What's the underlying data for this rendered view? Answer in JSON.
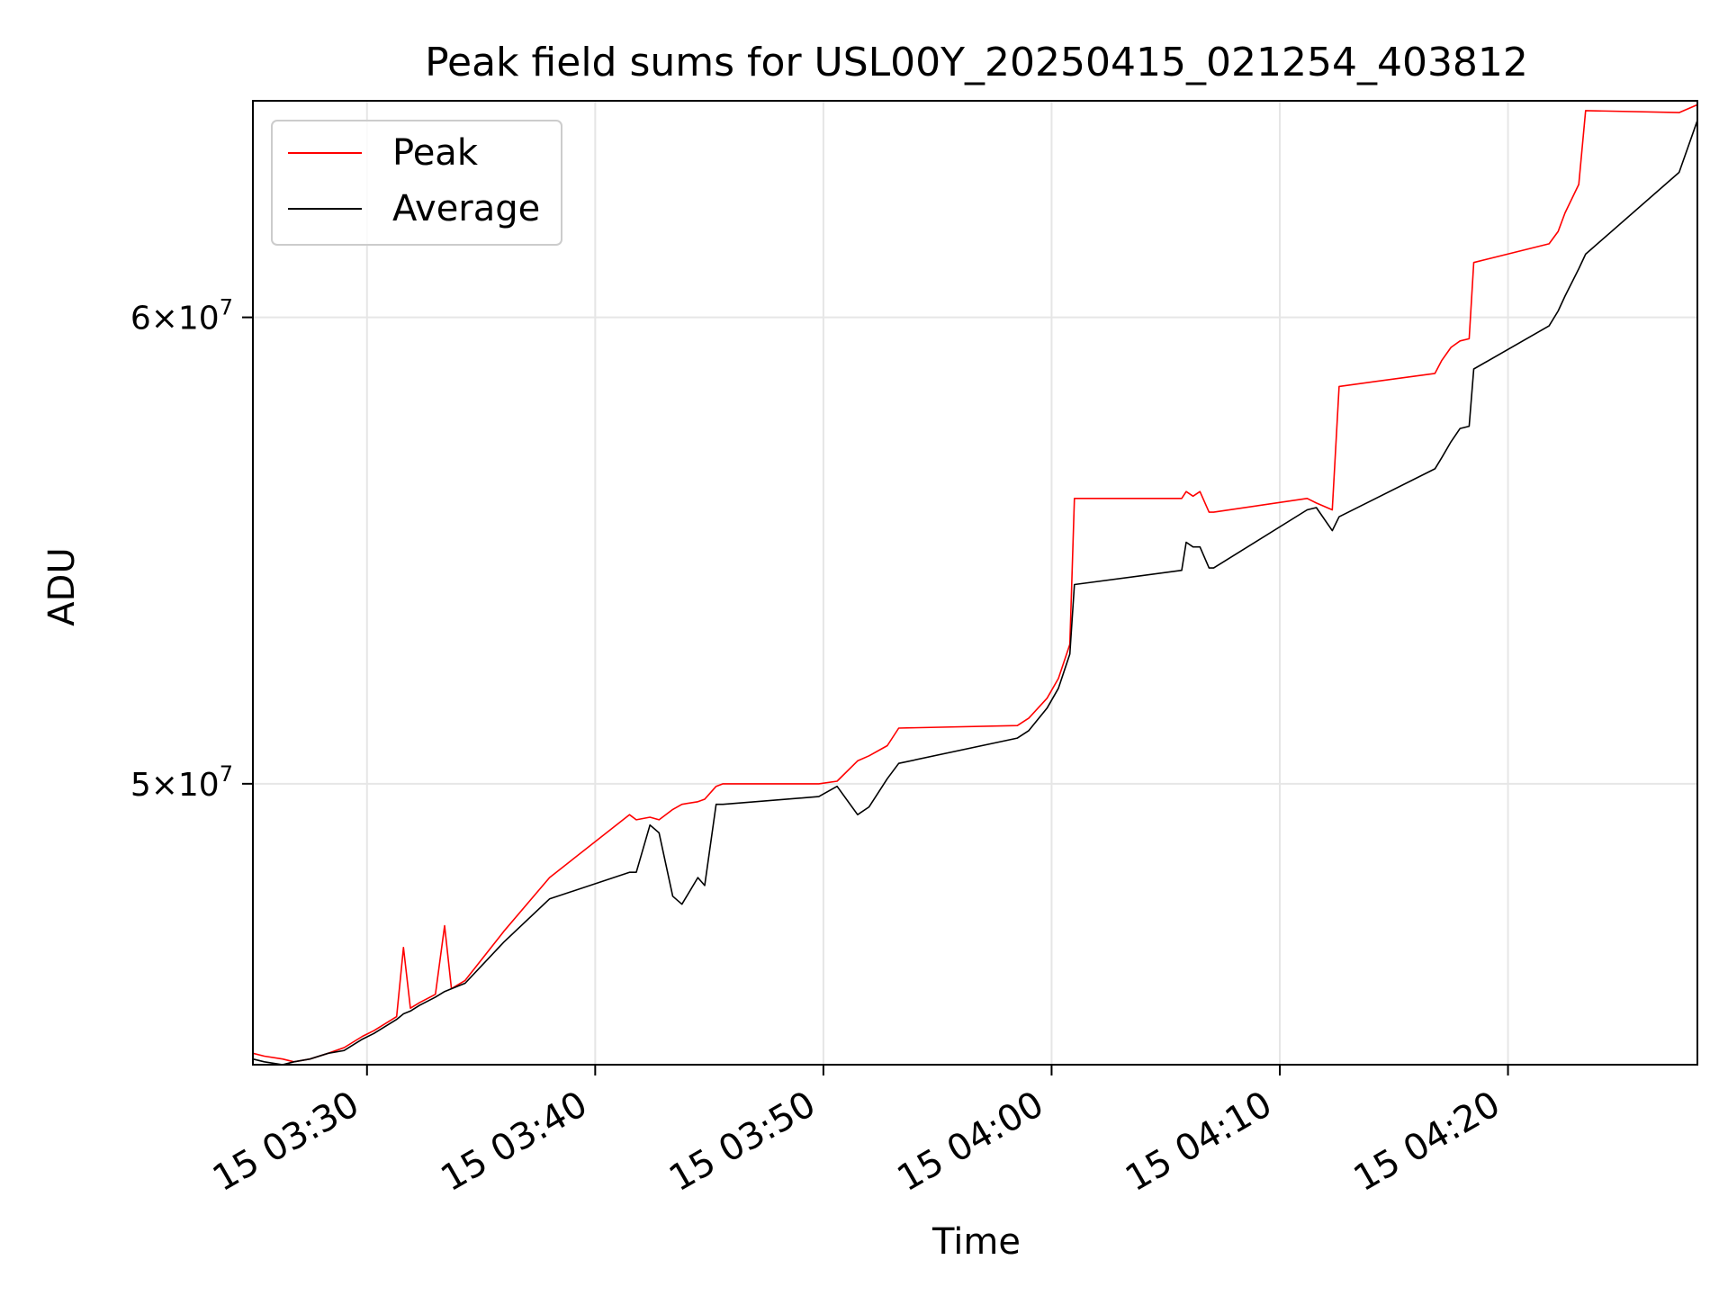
{
  "chart_data": {
    "type": "line",
    "title": "Peak field sums for USL00Y_20250415_021254_403812",
    "xlabel": "Time",
    "ylabel": "ADU",
    "x_unit": "minutes after 15 03:20",
    "xlim": [
      5.0,
      68.3
    ],
    "ylim": [
      44800000,
      65300000
    ],
    "yscale": "log",
    "grid": true,
    "legend_position": "top-left",
    "x_ticks": [
      {
        "value": 10,
        "label": "15 03:30"
      },
      {
        "value": 20,
        "label": "15 03:40"
      },
      {
        "value": 30,
        "label": "15 03:50"
      },
      {
        "value": 40,
        "label": "15 04:00"
      },
      {
        "value": 50,
        "label": "15 04:10"
      },
      {
        "value": 60,
        "label": "15 04:20"
      }
    ],
    "y_ticks": [
      {
        "value": 50000000,
        "label_base": "5",
        "label_exp": "7"
      },
      {
        "value": 60000000,
        "label_base": "6",
        "label_exp": "7"
      }
    ],
    "series": [
      {
        "name": "Peak",
        "color": "#ff0000",
        "x": [
          5.0,
          5.5,
          6.3,
          6.8,
          7.5,
          8.3,
          9.0,
          9.8,
          10.3,
          11.3,
          11.6,
          11.9,
          12.3,
          13.0,
          13.4,
          13.7,
          14.3,
          16.0,
          18.0,
          21.5,
          21.8,
          22.4,
          22.8,
          23.4,
          23.8,
          24.5,
          24.8,
          25.3,
          25.6,
          29.8,
          30.6,
          31.5,
          32.0,
          32.8,
          33.3,
          38.5,
          39.0,
          39.8,
          40.3,
          40.8,
          41.0,
          45.7,
          45.9,
          46.2,
          46.5,
          46.9,
          47.1,
          51.2,
          51.6,
          52.3,
          52.6,
          56.8,
          57.1,
          57.5,
          57.9,
          58.3,
          58.5,
          61.8,
          62.2,
          62.5,
          63.1,
          63.4,
          67.5,
          68.3
        ],
        "values": [
          45000000,
          44950000,
          44900000,
          44850000,
          44900000,
          45000000,
          45100000,
          45300000,
          45400000,
          45650000,
          46900000,
          45800000,
          45900000,
          46050000,
          47300000,
          46150000,
          46300000,
          47200000,
          48200000,
          49400000,
          49300000,
          49350000,
          49300000,
          49500000,
          49600000,
          49650000,
          49700000,
          49950000,
          50000000,
          50000000,
          50050000,
          50450000,
          50550000,
          50750000,
          51100000,
          51150000,
          51300000,
          51700000,
          52100000,
          52800000,
          55900000,
          55900000,
          56050000,
          55950000,
          56050000,
          55600000,
          55600000,
          55900000,
          55800000,
          55650000,
          58400000,
          58700000,
          59000000,
          59300000,
          59450000,
          59500000,
          61300000,
          61750000,
          62050000,
          62500000,
          63200000,
          65050000,
          65000000,
          65200000
        ]
      },
      {
        "name": "Average",
        "color": "#000000",
        "x": [
          5.0,
          5.5,
          6.3,
          6.8,
          7.5,
          8.3,
          9.0,
          9.8,
          10.3,
          11.3,
          11.6,
          11.9,
          12.3,
          13.0,
          13.4,
          13.7,
          14.3,
          16.0,
          18.0,
          21.5,
          21.8,
          22.4,
          22.8,
          23.4,
          23.8,
          24.5,
          24.8,
          25.3,
          25.6,
          29.8,
          30.6,
          31.5,
          32.0,
          32.8,
          33.3,
          38.5,
          39.0,
          39.8,
          40.3,
          40.8,
          41.0,
          45.7,
          45.9,
          46.2,
          46.5,
          46.9,
          47.1,
          51.2,
          51.6,
          52.3,
          52.6,
          56.8,
          57.1,
          57.5,
          57.9,
          58.3,
          58.5,
          61.8,
          62.2,
          62.5,
          63.1,
          63.4,
          67.5,
          68.3
        ],
        "values": [
          44900000,
          44850000,
          44800000,
          44850000,
          44900000,
          45000000,
          45050000,
          45250000,
          45350000,
          45600000,
          45700000,
          45750000,
          45850000,
          46000000,
          46100000,
          46150000,
          46250000,
          47000000,
          47800000,
          48300000,
          48300000,
          49200000,
          49050000,
          47850000,
          47700000,
          48200000,
          48050000,
          49600000,
          49600000,
          49750000,
          49950000,
          49400000,
          49550000,
          50100000,
          50400000,
          50900000,
          51050000,
          51500000,
          51900000,
          52600000,
          54050000,
          54350000,
          54950000,
          54850000,
          54850000,
          54400000,
          54400000,
          55650000,
          55700000,
          55200000,
          55500000,
          56550000,
          56800000,
          57150000,
          57450000,
          57500000,
          58800000,
          59800000,
          60150000,
          60500000,
          61150000,
          61500000,
          63500000,
          64800000
        ]
      }
    ]
  }
}
